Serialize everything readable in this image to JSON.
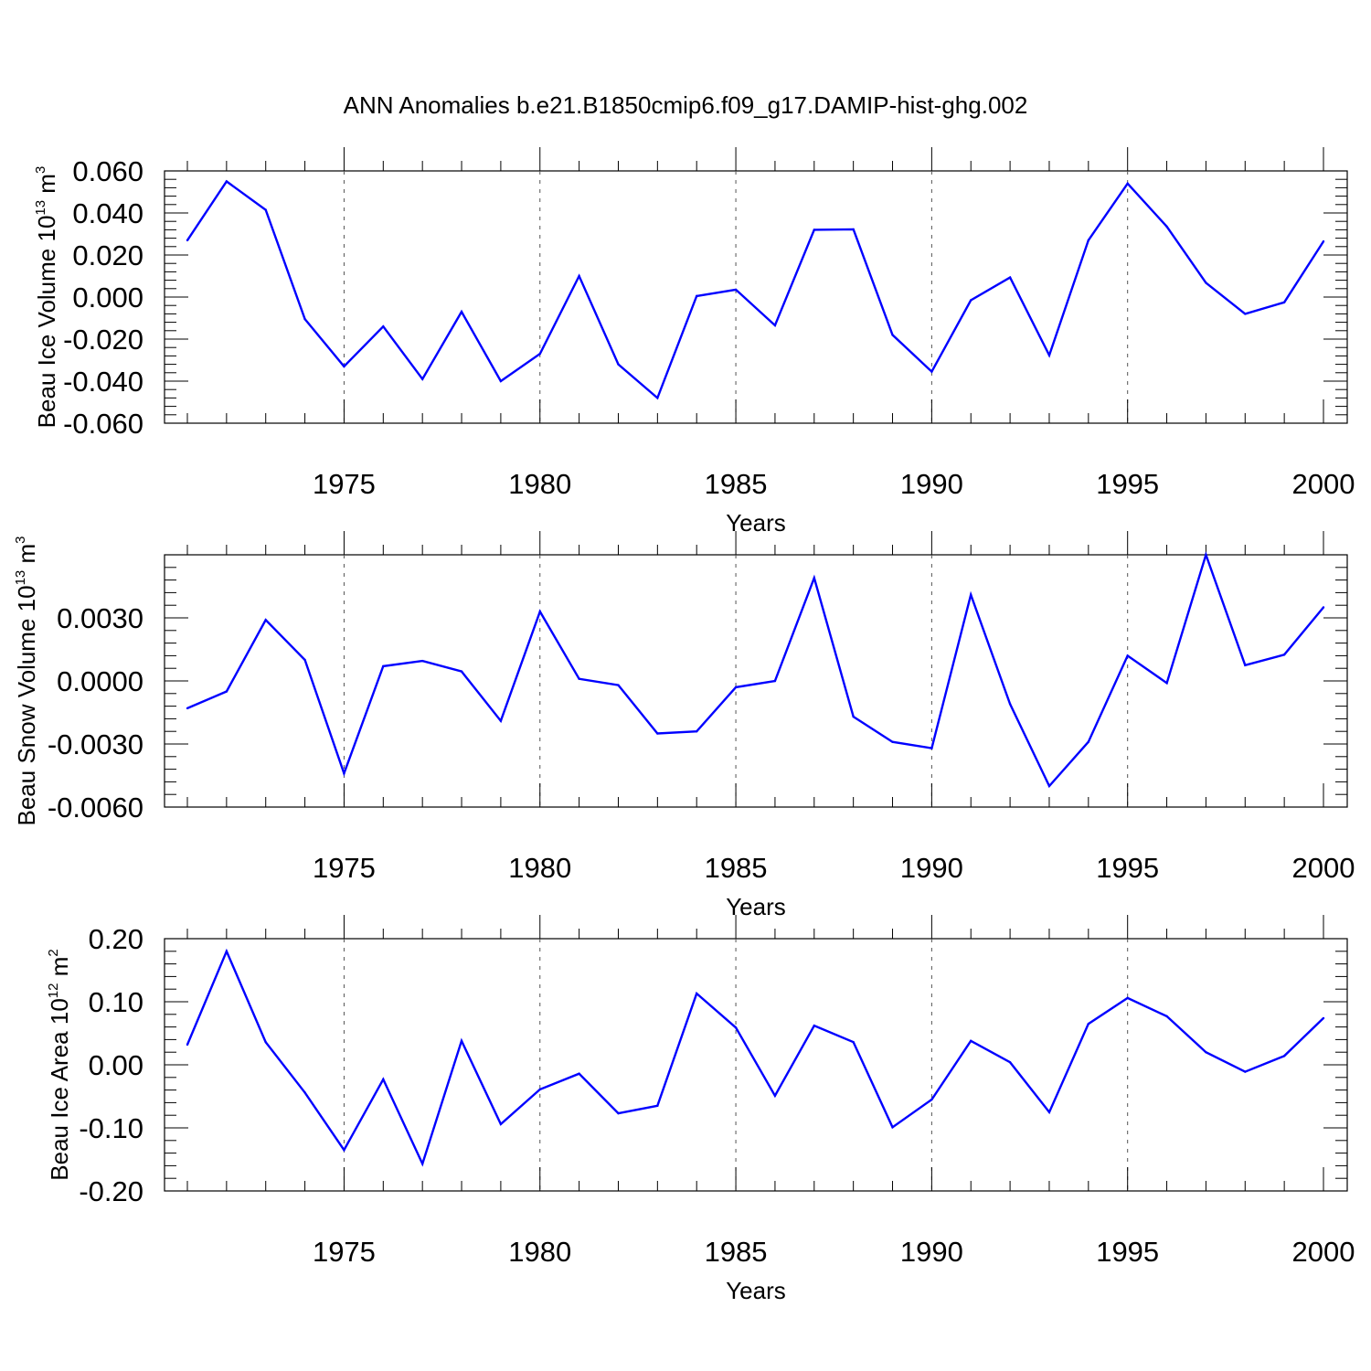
{
  "title": "ANN Anomalies b.e21.B1850cmip6.f09_g17.DAMIP-hist-ghg.002",
  "line_color": "#0000ff",
  "chart_data": [
    {
      "type": "line",
      "ylabel": "Beau Ice Volume 10",
      "ylabel_exp": "13",
      "ylabel_unit": "m",
      "ylabel_unit_exp": "3",
      "xlabel": "Years",
      "xlim": [
        1971,
        2001
      ],
      "ylim": [
        -0.06,
        0.06
      ],
      "x_ticks": [
        1975,
        1980,
        1985,
        1990,
        1995,
        2000
      ],
      "x_tick_labels": [
        "1975",
        "1980",
        "1985",
        "1990",
        "1995",
        "2000"
      ],
      "y_ticks": [
        0.06,
        0.04,
        0.02,
        0.0,
        -0.02,
        -0.04,
        -0.06
      ],
      "y_tick_labels": [
        "0.060",
        "0.040",
        "0.020",
        "0.000",
        "-0.020",
        "-0.040",
        "-0.060"
      ],
      "grid": "dashed vertical at major x ticks",
      "series": [
        {
          "name": "Beau Ice Volume anomaly",
          "x": [
            1971,
            1972,
            1973,
            1974,
            1975,
            1976,
            1977,
            1978,
            1979,
            1980,
            1981,
            1982,
            1983,
            1984,
            1985,
            1986,
            1987,
            1988,
            1989,
            1990,
            1991,
            1992,
            1993,
            1994,
            1995,
            1996,
            1997,
            1998,
            1999,
            2000
          ],
          "values": [
            0.027,
            0.055,
            0.0415,
            -0.0105,
            -0.033,
            -0.014,
            -0.039,
            -0.007,
            -0.04,
            -0.027,
            0.01,
            -0.032,
            -0.048,
            0.0005,
            0.0035,
            -0.0135,
            0.032,
            0.0322,
            -0.018,
            -0.0355,
            -0.0015,
            0.0093,
            -0.0277,
            0.027,
            0.054,
            0.0335,
            0.0068,
            -0.008,
            -0.0025,
            0.0265
          ]
        }
      ]
    },
    {
      "type": "line",
      "ylabel": "Beau Snow Volume 10",
      "ylabel_exp": "13",
      "ylabel_unit": "m",
      "ylabel_unit_exp": "3",
      "xlabel": "Years",
      "xlim": [
        1971,
        2001
      ],
      "ylim": [
        -0.006,
        0.006
      ],
      "x_ticks": [
        1975,
        1980,
        1985,
        1990,
        1995,
        2000
      ],
      "x_tick_labels": [
        "1975",
        "1980",
        "1985",
        "1990",
        "1995",
        "2000"
      ],
      "y_ticks": [
        0.003,
        0.0,
        -0.003,
        -0.006
      ],
      "y_tick_labels": [
        "0.0030",
        "0.0000",
        "-0.0030",
        "-0.0060"
      ],
      "grid": "dashed vertical at major x ticks",
      "series": [
        {
          "name": "Beau Snow Volume anomaly",
          "x": [
            1971,
            1972,
            1973,
            1974,
            1975,
            1976,
            1977,
            1978,
            1979,
            1980,
            1981,
            1982,
            1983,
            1984,
            1985,
            1986,
            1987,
            1988,
            1989,
            1990,
            1991,
            1992,
            1993,
            1994,
            1995,
            1996,
            1997,
            1998,
            1999,
            2000
          ],
          "values": [
            -0.0013,
            -0.0005,
            0.0029,
            0.001,
            -0.0044,
            0.0007,
            0.00095,
            0.00045,
            -0.0019,
            0.0033,
            0.0001,
            -0.0002,
            -0.0025,
            -0.0024,
            -0.0003,
            0.0,
            0.0049,
            -0.0017,
            -0.0029,
            -0.0032,
            0.0041,
            -0.0011,
            -0.005,
            -0.0029,
            0.0012,
            -0.0001,
            0.006,
            0.00075,
            0.00125,
            0.0035
          ]
        }
      ]
    },
    {
      "type": "line",
      "ylabel": "Beau Ice Area 10",
      "ylabel_exp": "12",
      "ylabel_unit": "m",
      "ylabel_unit_exp": "2",
      "xlabel": "Years",
      "xlim": [
        1971,
        2001
      ],
      "ylim": [
        -0.2,
        0.2
      ],
      "x_ticks": [
        1975,
        1980,
        1985,
        1990,
        1995,
        2000
      ],
      "x_tick_labels": [
        "1975",
        "1980",
        "1985",
        "1990",
        "1995",
        "2000"
      ],
      "y_ticks": [
        0.2,
        0.1,
        0.0,
        -0.1,
        -0.2
      ],
      "y_tick_labels": [
        "0.20",
        "0.10",
        "0.00",
        "-0.10",
        "-0.20"
      ],
      "grid": "dashed vertical at major x ticks",
      "series": [
        {
          "name": "Beau Ice Area anomaly",
          "x": [
            1971,
            1972,
            1973,
            1974,
            1975,
            1976,
            1977,
            1978,
            1979,
            1980,
            1981,
            1982,
            1983,
            1984,
            1985,
            1986,
            1987,
            1988,
            1989,
            1990,
            1991,
            1992,
            1993,
            1994,
            1995,
            1996,
            1997,
            1998,
            1999,
            2000
          ],
          "values": [
            0.032,
            0.18,
            0.036,
            -0.044,
            -0.135,
            -0.023,
            -0.157,
            0.038,
            -0.094,
            -0.039,
            -0.014,
            -0.077,
            -0.065,
            0.113,
            0.059,
            -0.049,
            0.062,
            0.036,
            -0.099,
            -0.055,
            0.038,
            0.004,
            -0.075,
            0.065,
            0.106,
            0.077,
            0.02,
            -0.011,
            0.014,
            0.074
          ]
        }
      ]
    }
  ]
}
